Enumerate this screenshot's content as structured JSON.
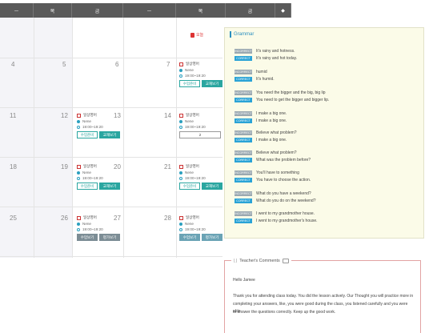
{
  "calendar": {
    "headers": [
      "ㅡ",
      "목",
      "금",
      "ㅡ",
      "목",
      "금",
      "◆"
    ],
    "today_badge": "오늘",
    "days": [
      {
        "num": "4"
      },
      {
        "num": "5"
      },
      {
        "num": "6"
      },
      {
        "num": "7"
      },
      {
        "num": "11"
      },
      {
        "num": "12"
      },
      {
        "num": "13"
      },
      {
        "num": "14"
      },
      {
        "num": "18"
      },
      {
        "num": "19"
      },
      {
        "num": "20"
      },
      {
        "num": "21"
      },
      {
        "num": "25"
      },
      {
        "num": "26"
      },
      {
        "num": "27"
      },
      {
        "num": "28"
      }
    ],
    "entries": [
      {
        "title": "일상영어",
        "teacher": "Nene",
        "time": "19:00~19:20",
        "btn1": "수업준비",
        "btn2": "교재보기"
      },
      {
        "title": "일상영어",
        "teacher": "Nene",
        "time": "19:00~19:20",
        "btn1": "수업준비",
        "btn2": "교재보기"
      },
      {
        "title": "일상영어",
        "teacher": "Nene",
        "time": "19:00~19:20",
        "btn1": "",
        "btn2": "2"
      },
      {
        "title": "일상영어",
        "teacher": "Nene",
        "time": "19:00~19:20",
        "btn1": "수업준비",
        "btn2": "교재보기"
      },
      {
        "title": "일상영어",
        "teacher": "Nene",
        "time": "19:00~19:20",
        "btn1": "수업준비",
        "btn2": "교재보기"
      },
      {
        "title": "일상영어",
        "teacher": "Nene",
        "time": "19:00~19:20",
        "btn1": "수업보기",
        "btn2": "평가보기"
      },
      {
        "title": "일상영어",
        "teacher": "Nene",
        "time": "19:00~19:20",
        "btn1": "수업보기",
        "btn2": "평가보기"
      }
    ]
  },
  "grammar": {
    "title": "Grammar",
    "lines": [
      {
        "tag": "INCORRECT",
        "text": "It's rainy and hotness."
      },
      {
        "tag": "CORRECT",
        "text": "It's rainy and hot today."
      },
      {
        "tag": "INCORRECT",
        "text": "humid"
      },
      {
        "tag": "CORRECT",
        "text": "It's humid."
      },
      {
        "tag": "INCORRECT",
        "text": "You need the bigger and the big, big lip"
      },
      {
        "tag": "CORRECT",
        "text": "You need to get the bigger and bigger lip."
      },
      {
        "tag": "INCORRECT",
        "text": "I make a big one."
      },
      {
        "tag": "CORRECT",
        "text": "I make a big one."
      },
      {
        "tag": "INCORRECT",
        "text": "Believe what problem?"
      },
      {
        "tag": "CORRECT",
        "text": "I make a big one."
      },
      {
        "tag": "INCORRECT",
        "text": "Believe what problem?"
      },
      {
        "tag": "CORRECT",
        "text": "What was the problem before?"
      },
      {
        "tag": "INCORRECT",
        "text": "You'll have to something"
      },
      {
        "tag": "CORRECT",
        "text": "You have to choose the action."
      },
      {
        "tag": "INCORRECT",
        "text": "What do you have a weekend?"
      },
      {
        "tag": "CORRECT",
        "text": "What do you do on the weekend?"
      },
      {
        "tag": "INCORRECT",
        "text": "I went to my grandmother house."
      },
      {
        "tag": "CORRECT",
        "text": "I went to my grandmother's house."
      }
    ]
  },
  "teacher": {
    "title": "Teacher's Comments",
    "greeting": "Hello Jamee",
    "body1": "Thank you for attending class today. You did the lesson actively. Our Thought you will practice more in",
    "body2": "completing your answers, like, you were good during the class, you listened carefully and you were able",
    "body3": "to answer the questions correctly. Keep up the good work."
  }
}
